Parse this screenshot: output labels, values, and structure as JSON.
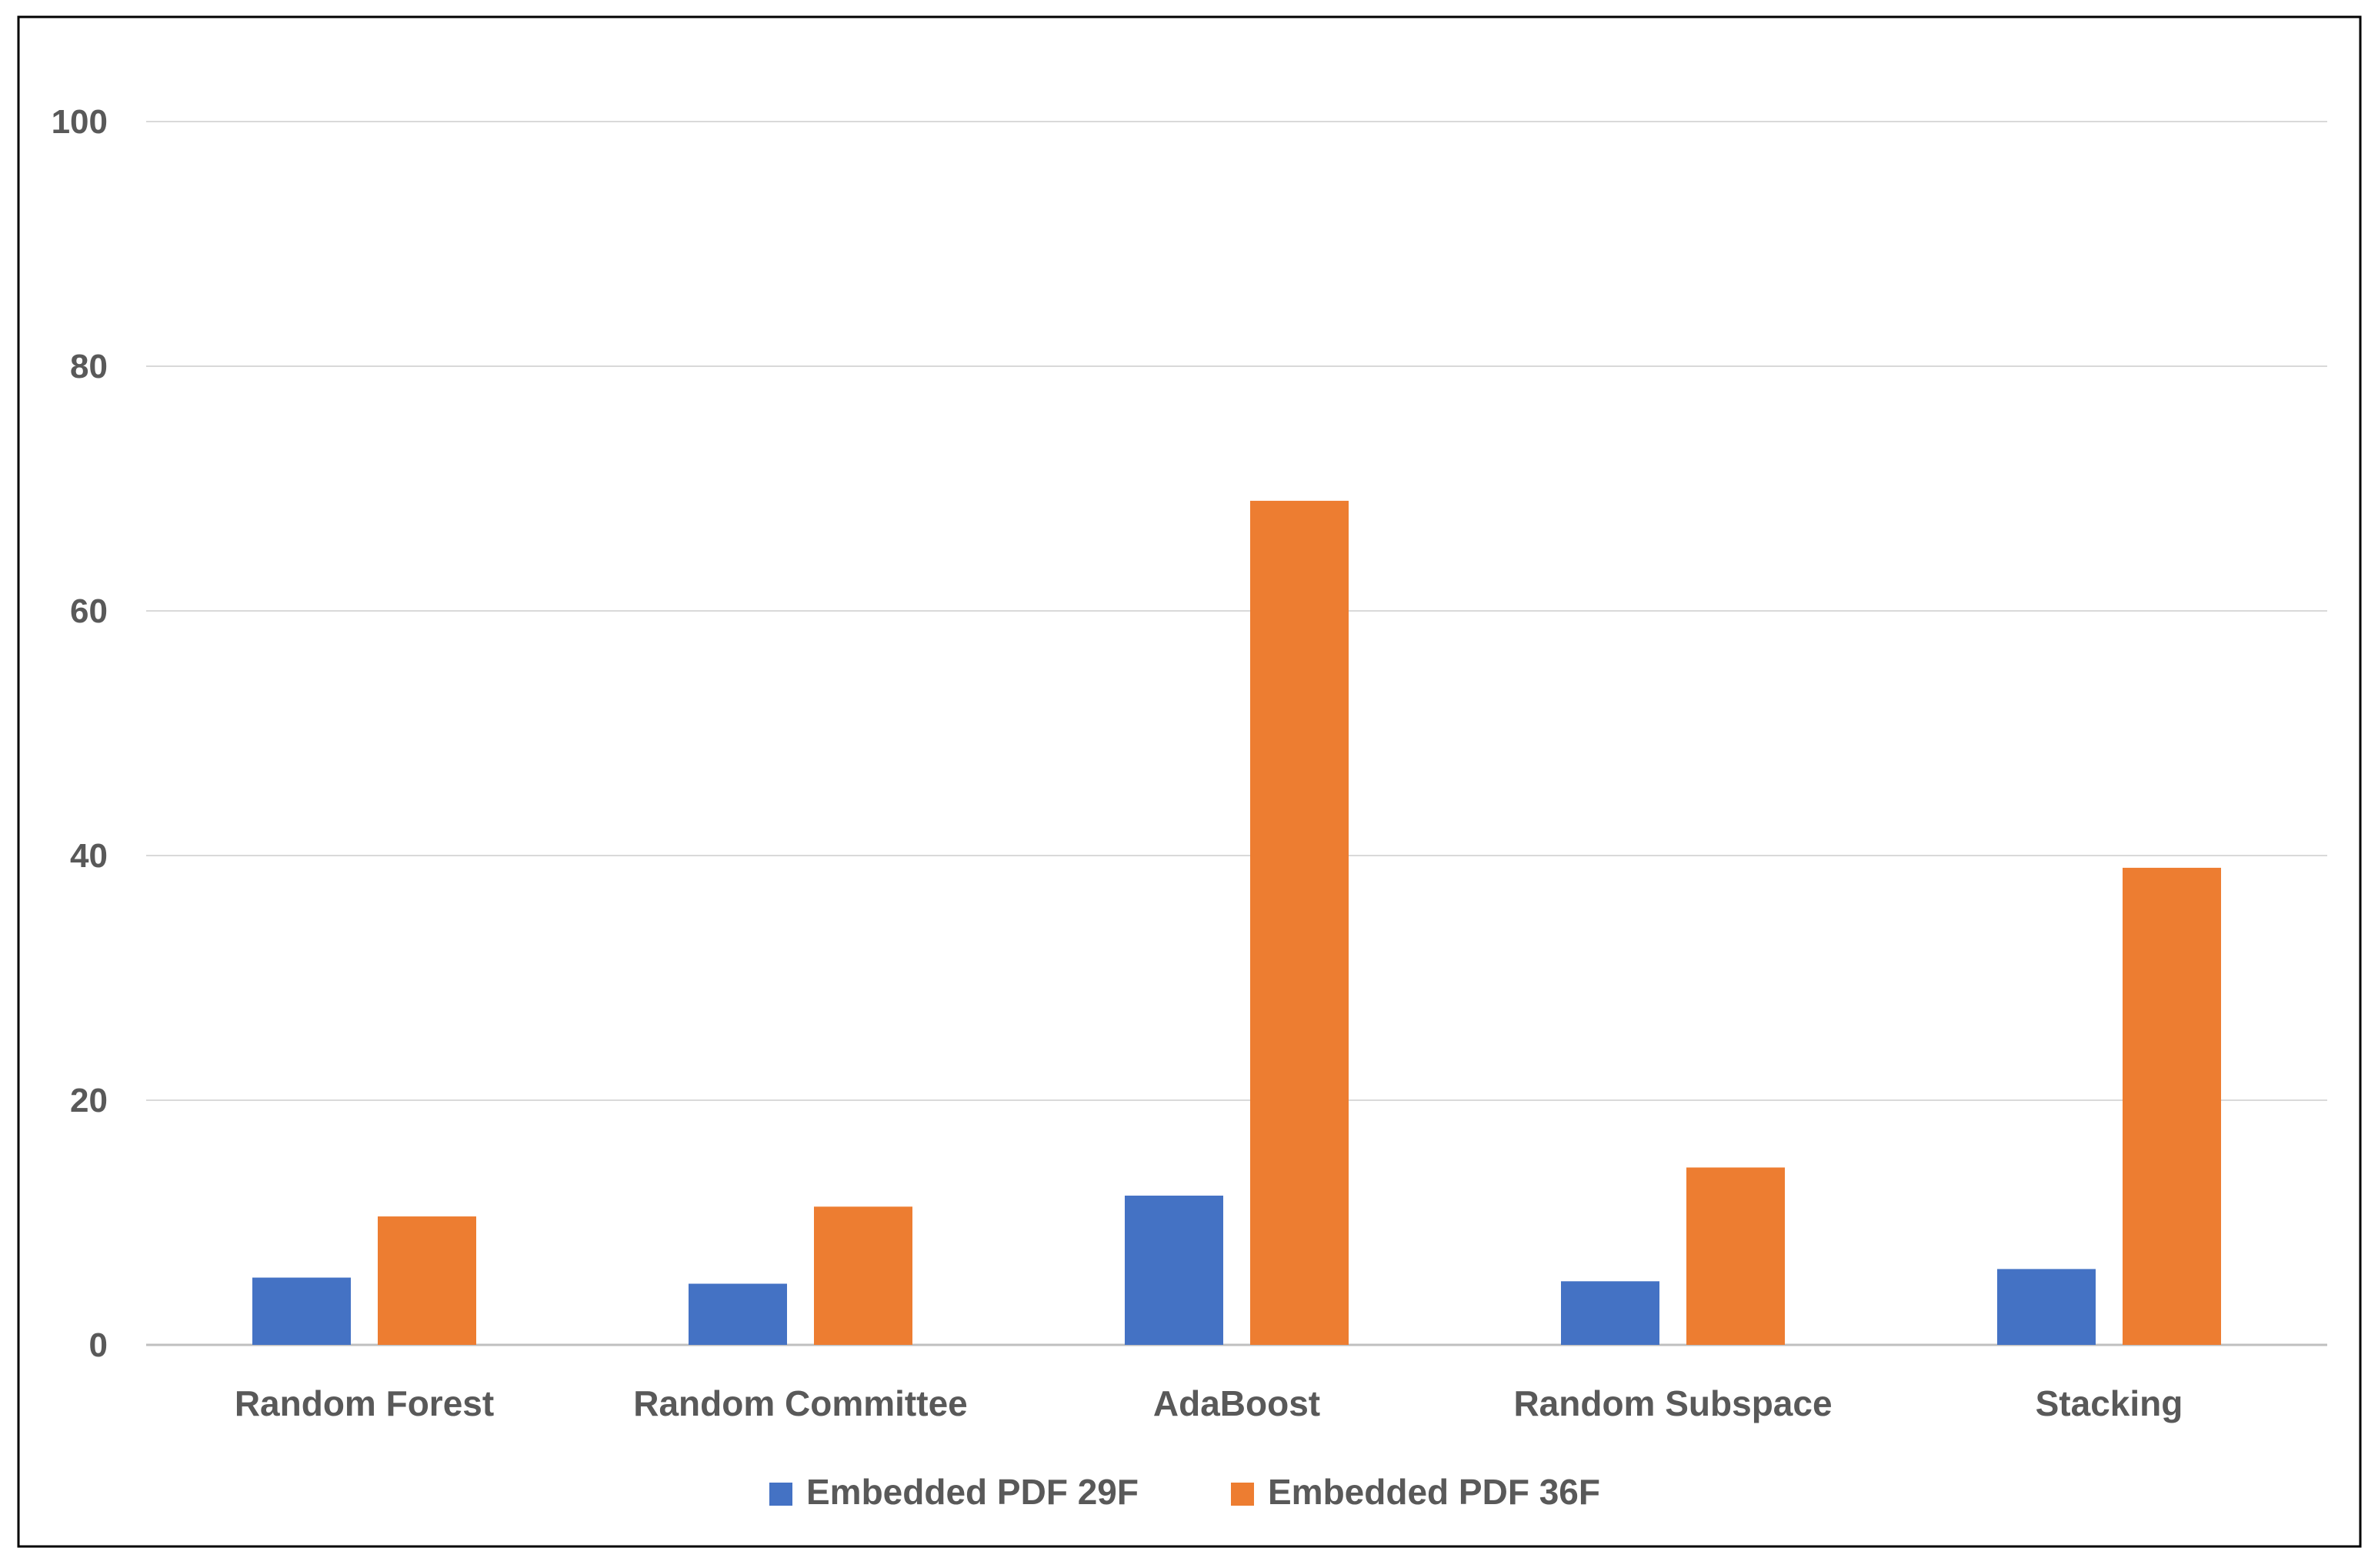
{
  "chart_data": {
    "type": "bar",
    "title": "",
    "xlabel": "",
    "ylabel": "",
    "categories": [
      "Random Forest",
      "Random Committee",
      "AdaBoost",
      "Random Subspace",
      "Stacking"
    ],
    "series": [
      {
        "name": "Embedded PDF 29F",
        "color": "#4472C4",
        "values": [
          5.5,
          5.0,
          12.2,
          5.2,
          6.2
        ]
      },
      {
        "name": "Embedded PDF 36F",
        "color": "#ED7D31",
        "values": [
          10.5,
          11.3,
          69.0,
          14.5,
          39.0
        ]
      }
    ],
    "ylim": [
      0,
      100
    ],
    "yticks": [
      0,
      20,
      40,
      60,
      80,
      100
    ],
    "ytick_labels": [
      "0",
      "20",
      "40",
      "60",
      "80",
      "100"
    ],
    "grid": true,
    "legend": "bottom-center",
    "colors": {
      "gridline": "#D9D9D9",
      "text": "#595959",
      "frame": "#000000"
    }
  }
}
